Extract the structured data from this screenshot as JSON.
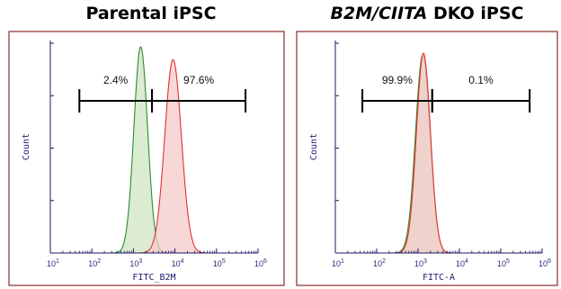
{
  "colors": {
    "frame": "#8b2b2b",
    "axis": "#1a1a66",
    "green": "#2e8b2e",
    "green_fill": "#cfe6c4",
    "red": "#e33030",
    "red_fill": "#f6c9c9",
    "overlap_fill": "#d9c4a0"
  },
  "chart_data": [
    {
      "type": "area",
      "title_parts": [
        "Parental iPSC"
      ],
      "xlabel": "FITC_B2M",
      "ylabel": "Count",
      "xscale": "log",
      "xlim": [
        10,
        1000000
      ],
      "ylim": [
        0,
        1
      ],
      "x_ticks": [
        {
          "base": "10",
          "exp": "1"
        },
        {
          "base": "10",
          "exp": "2"
        },
        {
          "base": "10",
          "exp": "3"
        },
        {
          "base": "10",
          "exp": "4"
        },
        {
          "base": "10",
          "exp": "5"
        },
        {
          "base": "10",
          "exp": "6"
        }
      ],
      "series": [
        {
          "color": "green",
          "peak": 1500,
          "sigma": 0.165,
          "height": 0.97
        },
        {
          "color": "red",
          "peak": 9000,
          "sigma": 0.2,
          "height": 0.91
        }
      ],
      "gates": [
        {
          "label": "2.4%",
          "from": 50,
          "to": 2800
        },
        {
          "label": "97.6%",
          "from": 2800,
          "to": 500000
        }
      ]
    },
    {
      "type": "area",
      "title_parts": [
        "B2M/CIITA",
        " DKO iPSC"
      ],
      "xlabel": "FITC-A",
      "ylabel": "Count",
      "xscale": "log",
      "xlim": [
        10,
        1000000
      ],
      "ylim": [
        0,
        1
      ],
      "x_ticks": [
        {
          "base": "10",
          "exp": "1"
        },
        {
          "base": "10",
          "exp": "2"
        },
        {
          "base": "10",
          "exp": "3"
        },
        {
          "base": "10",
          "exp": "4"
        },
        {
          "base": "10",
          "exp": "5"
        },
        {
          "base": "10",
          "exp": "6"
        }
      ],
      "series": [
        {
          "color": "green",
          "peak": 1300,
          "sigma": 0.175,
          "height": 0.93
        },
        {
          "color": "red",
          "peak": 1350,
          "sigma": 0.17,
          "height": 0.94
        }
      ],
      "gates": [
        {
          "label": "99.9%",
          "from": 45,
          "to": 2200
        },
        {
          "label": "0.1%",
          "from": 2200,
          "to": 500000
        }
      ]
    }
  ]
}
